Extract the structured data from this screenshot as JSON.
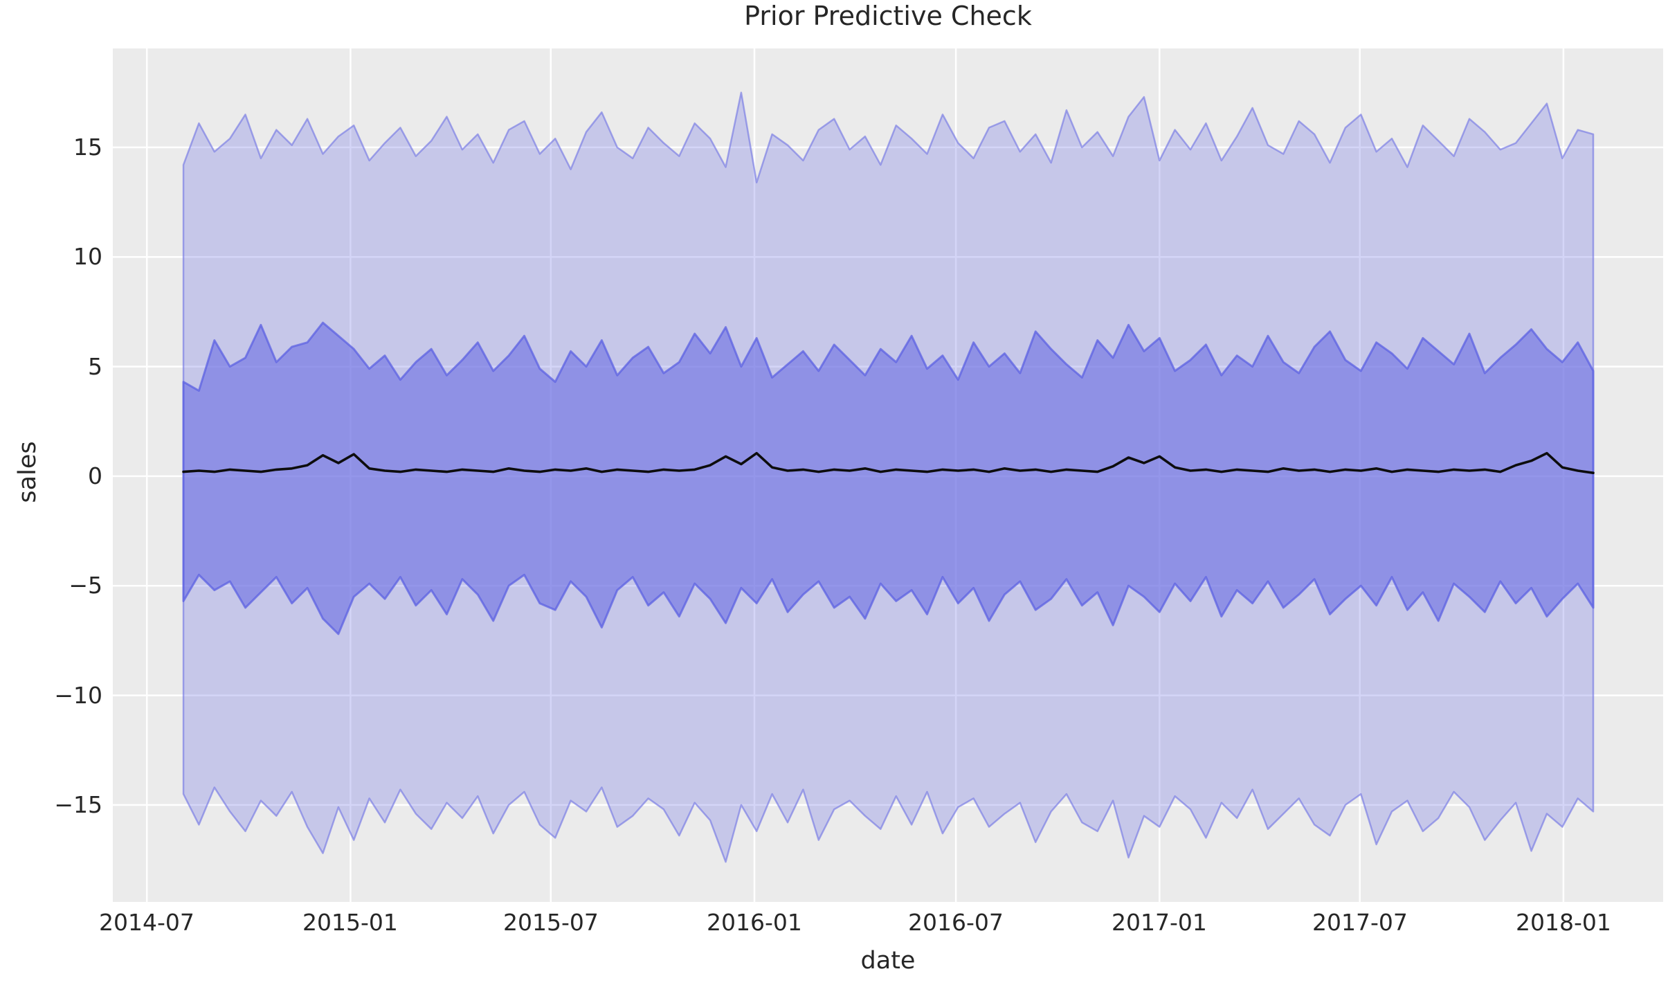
{
  "title": "Prior Predictive Check",
  "xlabel": "date",
  "ylabel": "sales",
  "colors": {
    "figure_background": "#ffffff",
    "axes_background": "#ebebeb",
    "grid": "#ffffff",
    "text": "#262626",
    "band_base": "#7174e4",
    "outer_band_fill": "rgba(113,116,228,0.30)",
    "outer_band_edge": "rgba(113,116,228,0.62)",
    "inner_band_fill": "rgba(113,116,228,0.65)",
    "inner_band_edge": "rgba(92,97,226,0.75)",
    "observed_line": "#0d0d0d"
  },
  "chart_data": {
    "type": "area",
    "title": "Prior Predictive Check",
    "xlabel": "date",
    "ylabel": "sales",
    "grid": true,
    "legend": false,
    "x_start_date": "2014-08-03",
    "x_step_days": 14,
    "x_tick_dates": [
      "2014-07-01",
      "2015-01-01",
      "2015-07-01",
      "2016-01-01",
      "2016-07-01",
      "2017-01-01",
      "2017-07-01",
      "2018-01-01"
    ],
    "x_tick_labels": [
      "2014-07",
      "2015-01",
      "2015-07",
      "2016-01",
      "2016-07",
      "2017-01",
      "2017-07",
      "2018-01"
    ],
    "y_ticks": [
      15,
      10,
      5,
      0,
      -5,
      -10,
      -15
    ],
    "y_tick_labels": [
      "15",
      "10",
      "5",
      "0",
      "−5",
      "−10",
      "−15"
    ],
    "ylim": [
      -19.4,
      19.5
    ],
    "series": [
      {
        "name": "outer_hdi_upper",
        "role": "outer_band_upper",
        "values": [
          14.2,
          16.1,
          14.8,
          15.4,
          16.5,
          14.5,
          15.8,
          15.1,
          16.3,
          14.7,
          15.5,
          16.0,
          14.4,
          15.2,
          15.9,
          14.6,
          15.3,
          16.4,
          14.9,
          15.6,
          14.3,
          15.8,
          16.2,
          14.7,
          15.4,
          14.0,
          15.7,
          16.6,
          15.0,
          14.5,
          15.9,
          15.2,
          14.6,
          16.1,
          15.4,
          14.1,
          17.5,
          13.4,
          15.6,
          15.1,
          14.4,
          15.8,
          16.3,
          14.9,
          15.5,
          14.2,
          16.0,
          15.4,
          14.7,
          16.5,
          15.2,
          14.5,
          15.9,
          16.2,
          14.8,
          15.6,
          14.3,
          16.7,
          15.0,
          15.7,
          14.6,
          16.4,
          17.3,
          14.4,
          15.8,
          14.9,
          16.1,
          14.4,
          15.5,
          16.8,
          15.1,
          14.7,
          16.2,
          15.6,
          14.3,
          15.9,
          16.5,
          14.8,
          15.4,
          14.1,
          16.0,
          15.3,
          14.6,
          16.3,
          15.7,
          14.9,
          15.2,
          16.1,
          17.0,
          14.5,
          15.8,
          15.6
        ]
      },
      {
        "name": "inner_hdi_upper",
        "role": "inner_band_upper",
        "values": [
          4.3,
          3.9,
          6.2,
          5.0,
          5.4,
          6.9,
          5.2,
          5.9,
          6.1,
          7.0,
          6.4,
          5.8,
          4.9,
          5.5,
          4.4,
          5.2,
          5.8,
          4.6,
          5.3,
          6.1,
          4.8,
          5.5,
          6.4,
          4.9,
          4.3,
          5.7,
          5.0,
          6.2,
          4.6,
          5.4,
          5.9,
          4.7,
          5.2,
          6.5,
          5.6,
          6.8,
          5.0,
          6.3,
          4.5,
          5.1,
          5.7,
          4.8,
          6.0,
          5.3,
          4.6,
          5.8,
          5.2,
          6.4,
          4.9,
          5.5,
          4.4,
          6.1,
          5.0,
          5.6,
          4.7,
          6.6,
          5.8,
          5.1,
          4.5,
          6.2,
          5.4,
          6.9,
          5.7,
          6.3,
          4.8,
          5.3,
          6.0,
          4.6,
          5.5,
          5.0,
          6.4,
          5.2,
          4.7,
          5.9,
          6.6,
          5.3,
          4.8,
          6.1,
          5.6,
          4.9,
          6.3,
          5.7,
          5.1,
          6.5,
          4.7,
          5.4,
          6.0,
          6.7,
          5.8,
          5.2,
          6.1,
          4.8
        ]
      },
      {
        "name": "observed_sales",
        "role": "line",
        "values": [
          0.2,
          0.25,
          0.2,
          0.3,
          0.25,
          0.2,
          0.3,
          0.35,
          0.5,
          0.95,
          0.6,
          1.0,
          0.35,
          0.25,
          0.2,
          0.3,
          0.25,
          0.2,
          0.3,
          0.25,
          0.2,
          0.35,
          0.25,
          0.2,
          0.3,
          0.25,
          0.35,
          0.2,
          0.3,
          0.25,
          0.2,
          0.3,
          0.25,
          0.3,
          0.5,
          0.9,
          0.55,
          1.05,
          0.4,
          0.25,
          0.3,
          0.2,
          0.3,
          0.25,
          0.35,
          0.2,
          0.3,
          0.25,
          0.2,
          0.3,
          0.25,
          0.3,
          0.2,
          0.35,
          0.25,
          0.3,
          0.2,
          0.3,
          0.25,
          0.2,
          0.45,
          0.85,
          0.6,
          0.9,
          0.4,
          0.25,
          0.3,
          0.2,
          0.3,
          0.25,
          0.2,
          0.35,
          0.25,
          0.3,
          0.2,
          0.3,
          0.25,
          0.35,
          0.2,
          0.3,
          0.25,
          0.2,
          0.3,
          0.25,
          0.3,
          0.2,
          0.5,
          0.7,
          1.05,
          0.4,
          0.25,
          0.15
        ]
      },
      {
        "name": "inner_hdi_lower",
        "role": "inner_band_lower",
        "values": [
          -5.7,
          -4.5,
          -5.2,
          -4.8,
          -6.0,
          -5.3,
          -4.6,
          -5.8,
          -5.1,
          -6.5,
          -7.2,
          -5.5,
          -4.9,
          -5.6,
          -4.6,
          -5.9,
          -5.2,
          -6.3,
          -4.7,
          -5.4,
          -6.6,
          -5.0,
          -4.5,
          -5.8,
          -6.1,
          -4.8,
          -5.5,
          -6.9,
          -5.2,
          -4.6,
          -5.9,
          -5.3,
          -6.4,
          -4.9,
          -5.6,
          -6.7,
          -5.1,
          -5.8,
          -4.7,
          -6.2,
          -5.4,
          -4.8,
          -6.0,
          -5.5,
          -6.5,
          -4.9,
          -5.7,
          -5.2,
          -6.3,
          -4.6,
          -5.8,
          -5.1,
          -6.6,
          -5.4,
          -4.8,
          -6.1,
          -5.6,
          -4.7,
          -5.9,
          -5.3,
          -6.8,
          -5.0,
          -5.5,
          -6.2,
          -4.9,
          -5.7,
          -4.6,
          -6.4,
          -5.2,
          -5.8,
          -4.8,
          -6.0,
          -5.4,
          -4.7,
          -6.3,
          -5.6,
          -5.0,
          -5.9,
          -4.6,
          -6.1,
          -5.3,
          -6.6,
          -4.9,
          -5.5,
          -6.2,
          -4.8,
          -5.8,
          -5.1,
          -6.4,
          -5.6,
          -4.9,
          -6.0
        ]
      },
      {
        "name": "outer_hdi_lower",
        "role": "outer_band_lower",
        "values": [
          -14.5,
          -15.9,
          -14.2,
          -15.3,
          -16.2,
          -14.8,
          -15.5,
          -14.4,
          -16.0,
          -17.2,
          -15.1,
          -16.6,
          -14.7,
          -15.8,
          -14.3,
          -15.4,
          -16.1,
          -14.9,
          -15.6,
          -14.6,
          -16.3,
          -15.0,
          -14.4,
          -15.9,
          -16.5,
          -14.8,
          -15.3,
          -14.2,
          -16.0,
          -15.5,
          -14.7,
          -15.2,
          -16.4,
          -14.9,
          -15.7,
          -17.6,
          -15.0,
          -16.2,
          -14.5,
          -15.8,
          -14.3,
          -16.6,
          -15.2,
          -14.8,
          -15.5,
          -16.1,
          -14.6,
          -15.9,
          -14.4,
          -16.3,
          -15.1,
          -14.7,
          -16.0,
          -15.4,
          -14.9,
          -16.7,
          -15.3,
          -14.5,
          -15.8,
          -16.2,
          -14.8,
          -17.4,
          -15.5,
          -16.0,
          -14.6,
          -15.2,
          -16.5,
          -14.9,
          -15.6,
          -14.3,
          -16.1,
          -15.4,
          -14.7,
          -15.9,
          -16.4,
          -15.0,
          -14.5,
          -16.8,
          -15.3,
          -14.8,
          -16.2,
          -15.6,
          -14.4,
          -15.1,
          -16.6,
          -15.7,
          -14.9,
          -17.1,
          -15.4,
          -16.0,
          -14.7,
          -15.3
        ]
      }
    ]
  }
}
